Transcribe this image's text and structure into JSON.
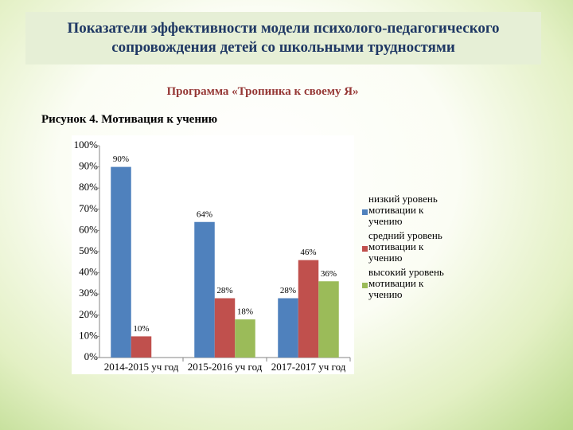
{
  "header": {
    "title": "Показатели эффективности модели психолого-педагогического сопровождения детей со школьными трудностями",
    "subtitle": "Программа «Тропинка к своему Я»",
    "caption": "Рисунок 4.  Мотивация к учению"
  },
  "chart_data": {
    "type": "bar",
    "categories": [
      "2014-2015 уч год",
      "2015-2016 уч год",
      "2017-2017 уч год"
    ],
    "series": [
      {
        "name": "низкий уровень мотивации к учению",
        "color": "#4f81bd",
        "values": [
          90,
          64,
          28
        ],
        "value_labels": [
          "90%",
          "64%",
          "28%"
        ]
      },
      {
        "name": "средний уровень мотивации к учению",
        "color": "#c0504d",
        "values": [
          10,
          28,
          46
        ],
        "value_labels": [
          "10%",
          "28%",
          "46%"
        ]
      },
      {
        "name": "высокий уровень мотивации к учению",
        "color": "#9bbb59",
        "values": [
          null,
          18,
          36
        ],
        "value_labels": [
          null,
          "18%",
          "36%"
        ]
      }
    ],
    "ylim": [
      0,
      100
    ],
    "yticks": [
      {
        "value": 0,
        "label": "0%"
      },
      {
        "value": 10,
        "label": "10%"
      },
      {
        "value": 20,
        "label": "20%"
      },
      {
        "value": 30,
        "label": "30%"
      },
      {
        "value": 40,
        "label": "40%"
      },
      {
        "value": 50,
        "label": "50%"
      },
      {
        "value": 60,
        "label": "60%"
      },
      {
        "value": 70,
        "label": "70%"
      },
      {
        "value": 80,
        "label": "80%"
      },
      {
        "value": 90,
        "label": "90%"
      },
      {
        "value": 100,
        "label": "100%"
      }
    ],
    "legend": "right",
    "grid": false
  }
}
